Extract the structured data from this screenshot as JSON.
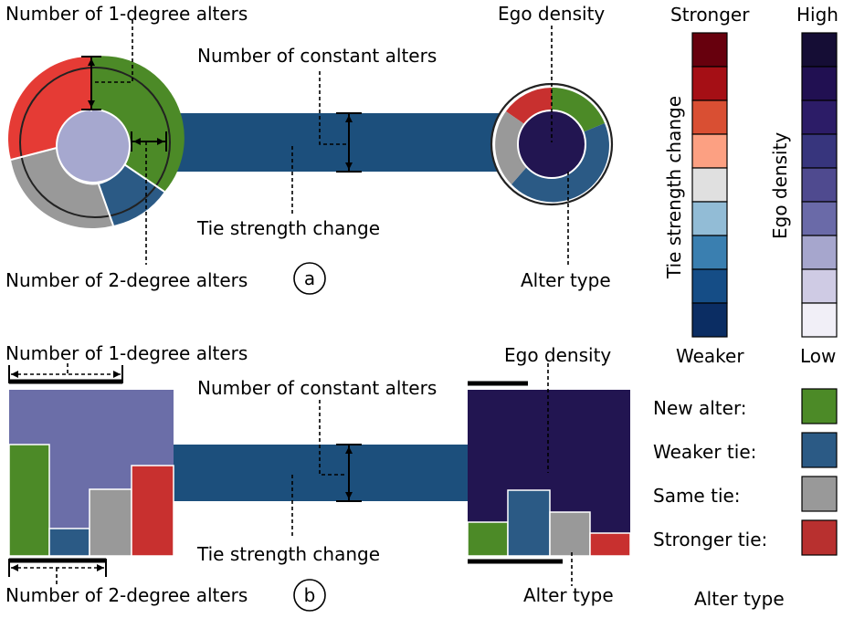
{
  "panel_a": {
    "label_1deg": "Number of 1-degree alters",
    "label_2deg": "Number of 2-degree alters",
    "label_constant": "Number of constant alters",
    "label_tie_change": "Tie strength change",
    "label_ego_density": "Ego density",
    "label_alter_type": "Alter type",
    "panel_label": "a"
  },
  "panel_b": {
    "label_1deg": "Number of 1-degree alters",
    "label_2deg": "Number of 2-degree alters",
    "label_constant": "Number of constant alters",
    "label_tie_change": "Tie strength change",
    "label_ego_density": "Ego density",
    "label_alter_type": "Alter type",
    "panel_label": "b"
  },
  "legend_tie": {
    "title": "Tie strength change",
    "top": "Stronger",
    "bottom": "Weaker",
    "colors": [
      "#67000d",
      "#a50f15",
      "#d94f33",
      "#fca082",
      "#e0e0e0",
      "#92bcd6",
      "#3a7fb0",
      "#154d86",
      "#0b2d63"
    ]
  },
  "legend_density": {
    "title": "Ego density",
    "top": "High",
    "bottom": "Low",
    "colors": [
      "#150d35",
      "#211052",
      "#2c1c67",
      "#37357d",
      "#4f4a8f",
      "#6a6aa8",
      "#a6a6cd",
      "#cfcbe4",
      "#f1eff7"
    ]
  },
  "legend_alter": {
    "title": "Alter type",
    "items": [
      {
        "label": "New alter:",
        "color": "#4c8a27"
      },
      {
        "label": "Weaker tie:",
        "color": "#2b5a85"
      },
      {
        "label": "Same tie:",
        "color": "#999999"
      },
      {
        "label": "Stronger tie:",
        "color": "#b8302f"
      }
    ]
  },
  "colors": {
    "link": "#1c4f7c",
    "green": "#4c8a27",
    "blue": "#2b5a85",
    "gray": "#999999",
    "red": "#e53b35",
    "bar_red": "#c8302f",
    "ego_left": "#a6a8cf",
    "ego_right": "#221551",
    "rect_left": "#6b6ea8"
  }
}
